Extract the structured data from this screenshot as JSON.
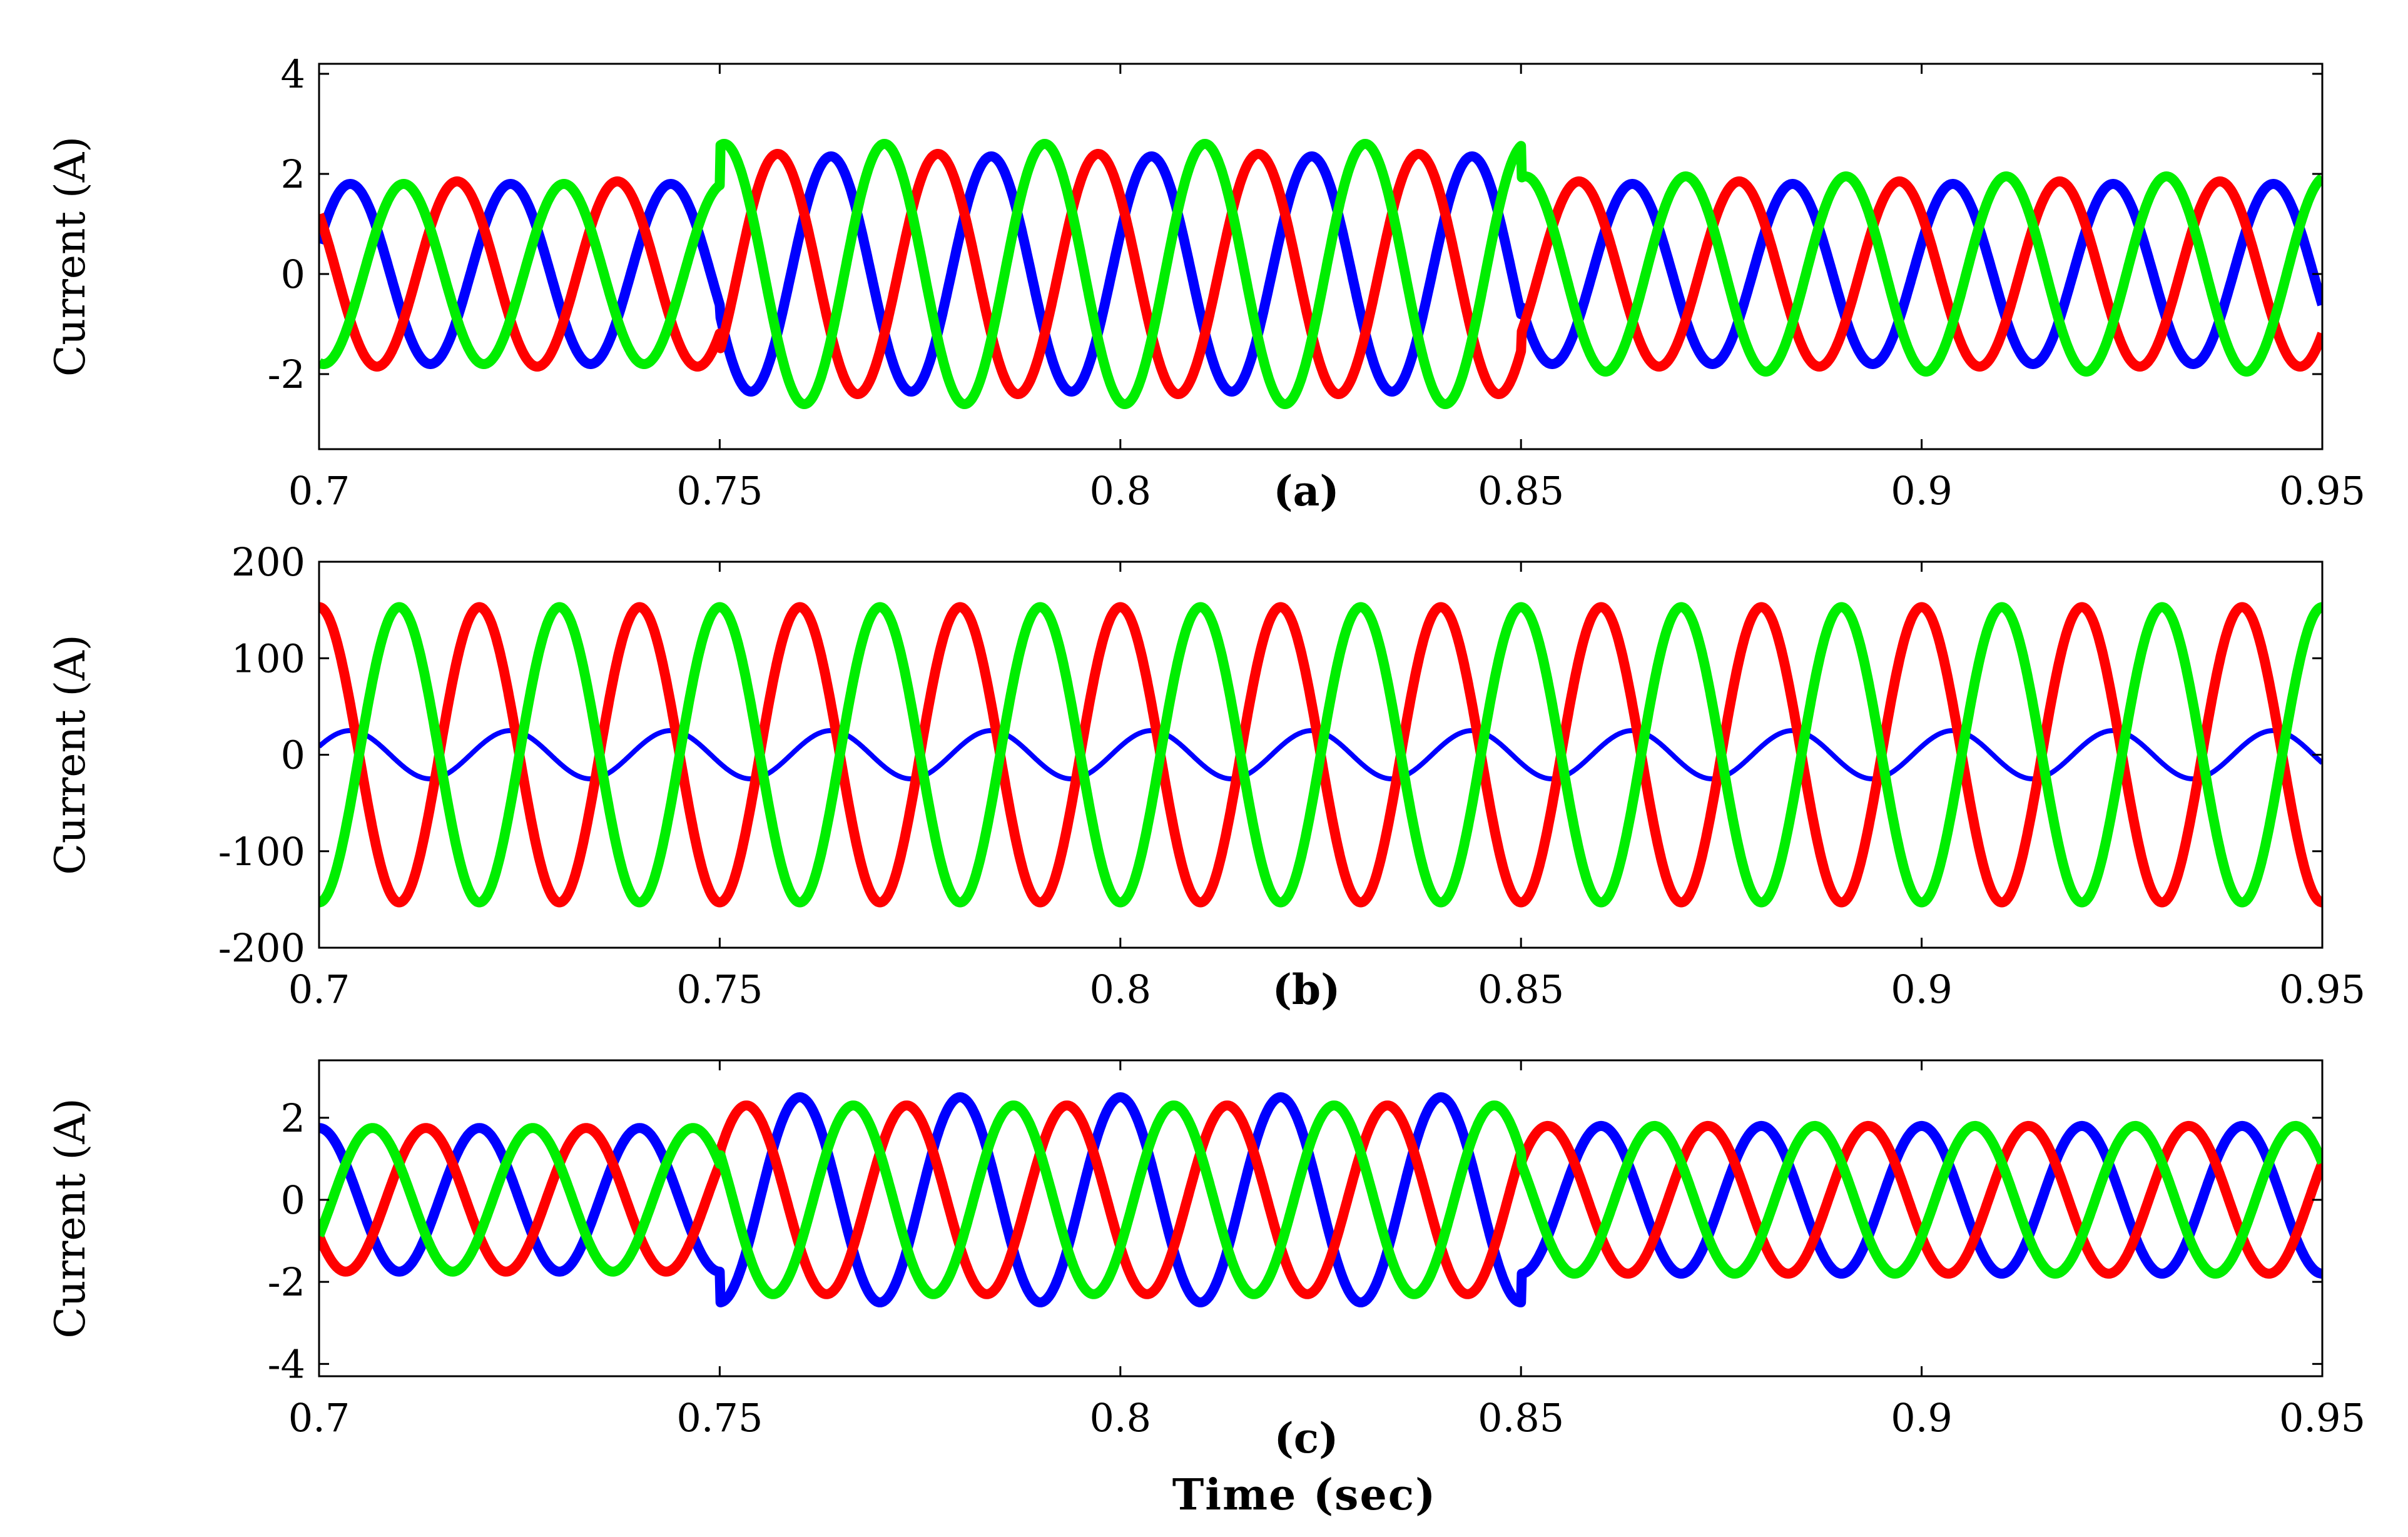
{
  "chart_data": [
    {
      "type": "line",
      "panel_label": "(a)",
      "ylabel": "Current (A)",
      "xlim": [
        0.7,
        0.95
      ],
      "ylim": [
        -3.5,
        4.2
      ],
      "xticks": [
        "0.7",
        "0.75",
        "0.8",
        "0.85",
        "0.9",
        "0.95"
      ],
      "yticks": [
        "4",
        "2",
        "0",
        "-2"
      ],
      "ytick_values": [
        4,
        2,
        0,
        -2
      ],
      "frequency_hz": 50,
      "series": [
        {
          "color": "#0000ff",
          "amplitude_segments": [
            [
              0.7,
              0.75,
              1.8
            ],
            [
              0.75,
              0.85,
              2.35
            ],
            [
              0.85,
              0.95,
              1.8
            ]
          ],
          "phase_deg": 20
        },
        {
          "color": "#ff0000",
          "amplitude_segments": [
            [
              0.7,
              0.75,
              1.85
            ],
            [
              0.75,
              0.85,
              2.4
            ],
            [
              0.85,
              0.95,
              1.85
            ]
          ],
          "phase_deg": 140
        },
        {
          "color": "#00ee00",
          "amplitude_segments": [
            [
              0.7,
              0.75,
              1.8
            ],
            [
              0.75,
              0.85,
              2.6
            ],
            [
              0.85,
              0.95,
              1.95
            ]
          ],
          "phase_deg": 260
        }
      ]
    },
    {
      "type": "line",
      "panel_label": "(b)",
      "ylabel": "Current (A)",
      "xlim": [
        0.7,
        0.95
      ],
      "ylim": [
        -200,
        200
      ],
      "xticks": [
        "0.7",
        "0.75",
        "0.8",
        "0.85",
        "0.9",
        "0.95"
      ],
      "yticks": [
        "200",
        "100",
        "0",
        "-100",
        "-200"
      ],
      "ytick_values": [
        200,
        100,
        0,
        -100,
        -200
      ],
      "frequency_hz": 50,
      "series": [
        {
          "color": "#0000ff",
          "amplitude_segments": [
            [
              0.7,
              0.95,
              25
            ]
          ],
          "phase_deg": 20
        },
        {
          "color": "#ff0000",
          "amplitude_segments": [
            [
              0.7,
              0.95,
              153
            ]
          ],
          "phase_deg": 90
        },
        {
          "color": "#00ee00",
          "amplitude_segments": [
            [
              0.7,
              0.95,
              153
            ]
          ],
          "phase_deg": 270
        }
      ]
    },
    {
      "type": "line",
      "panel_label": "(c)",
      "ylabel": "Current (A)",
      "xlim": [
        0.7,
        0.95
      ],
      "ylim": [
        -4.3,
        3.4
      ],
      "xticks": [
        "0.7",
        "0.75",
        "0.8",
        "0.85",
        "0.9",
        "0.95"
      ],
      "yticks": [
        "2",
        "0",
        "-2",
        "-4"
      ],
      "ytick_values": [
        2,
        0,
        -2,
        -4
      ],
      "frequency_hz": 50,
      "series": [
        {
          "color": "#0000ff",
          "amplitude_segments": [
            [
              0.7,
              0.75,
              1.75
            ],
            [
              0.75,
              0.85,
              2.5
            ],
            [
              0.85,
              0.95,
              1.8
            ]
          ],
          "phase_deg": 90
        },
        {
          "color": "#ff0000",
          "amplitude_segments": [
            [
              0.7,
              0.75,
              1.75
            ],
            [
              0.75,
              0.85,
              2.3
            ],
            [
              0.85,
              0.95,
              1.8
            ]
          ],
          "phase_deg": 210
        },
        {
          "color": "#00ee00",
          "amplitude_segments": [
            [
              0.7,
              0.75,
              1.75
            ],
            [
              0.75,
              0.85,
              2.3
            ],
            [
              0.85,
              0.95,
              1.8
            ]
          ],
          "phase_deg": 330
        }
      ]
    }
  ],
  "xlabel": "Time (sec)"
}
